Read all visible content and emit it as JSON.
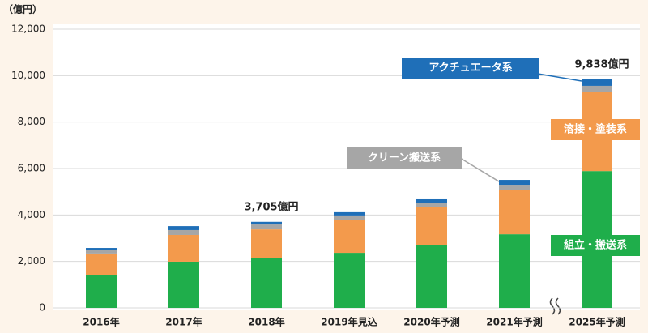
{
  "chart_data": {
    "type": "stacked_bar",
    "y_unit_label": "（億円）",
    "categories": [
      "2016年",
      "2017年",
      "2018年",
      "2019年見込",
      "2020年予測",
      "2021年予測",
      "2025年予測"
    ],
    "series": [
      {
        "name": "組立・搬送系",
        "color": "#1fae4b",
        "values": [
          1430,
          1990,
          2160,
          2370,
          2690,
          3170,
          5890
        ]
      },
      {
        "name": "溶接・塗装系",
        "color": "#f39a4c",
        "values": [
          910,
          1150,
          1220,
          1430,
          1670,
          1890,
          3390
        ]
      },
      {
        "name": "クリーン搬送系",
        "color": "#a6a6a6",
        "values": [
          140,
          210,
          210,
          180,
          170,
          240,
          280
        ]
      },
      {
        "name": "アクチュエータ系",
        "color": "#1f6fb8",
        "values": [
          100,
          170,
          115,
          140,
          180,
          210,
          278
        ]
      }
    ],
    "total_labels": [
      null,
      null,
      "3,705億円",
      null,
      null,
      null,
      "9,838億円"
    ],
    "ylim": [
      0,
      12000
    ],
    "yticks": [
      0,
      {
        "value": 2000,
        "label": "2,000"
      },
      {
        "value": 4000,
        "label": "4,000"
      },
      {
        "value": 6000,
        "label": "6,000"
      },
      {
        "value": 8000,
        "label": "8,000"
      },
      {
        "value": 10000,
        "label": "10,000"
      },
      {
        "value": 12000,
        "label": "12,000"
      }
    ],
    "grid": true
  }
}
